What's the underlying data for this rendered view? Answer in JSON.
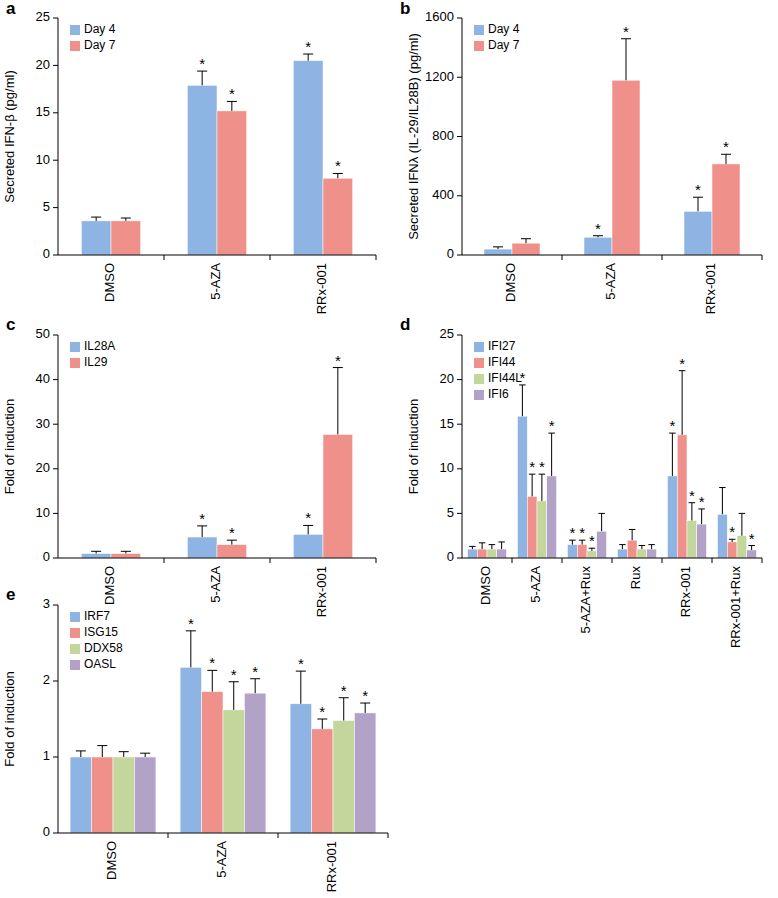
{
  "chart_data": [
    {
      "type": "bar",
      "panel": "a",
      "y_label": "Secreted IFN-β (pg/ml)",
      "categories": [
        "DMSO",
        "5-AZA",
        "RRx-001"
      ],
      "ylim": [
        0,
        25
      ],
      "yticks": [
        0,
        5,
        10,
        15,
        20,
        25
      ],
      "legend": "top-left",
      "series": [
        {
          "name": "Day 4",
          "color": "#8eb4e3",
          "values": [
            3.6,
            17.9,
            20.5
          ],
          "errors": [
            0.4,
            1.5,
            0.7
          ],
          "sig_labels": [
            null,
            "*",
            "*"
          ]
        },
        {
          "name": "Day 7",
          "color": "#f0908b",
          "values": [
            3.6,
            15.2,
            8.1
          ],
          "errors": [
            0.3,
            1.0,
            0.5
          ],
          "sig_labels": [
            null,
            "*",
            "*"
          ]
        }
      ]
    },
    {
      "type": "bar",
      "panel": "b",
      "y_label": "Secreted IFNλ (IL-29/IL28B) (pg/ml)",
      "categories": [
        "DMSO",
        "5-AZA",
        "RRx-001"
      ],
      "ylim": [
        0,
        1600
      ],
      "yticks": [
        0,
        400,
        800,
        1200,
        1600
      ],
      "legend": "top-left",
      "series": [
        {
          "name": "Day 4",
          "color": "#8eb4e3",
          "values": [
            40,
            120,
            295
          ],
          "errors": [
            15,
            10,
            95
          ],
          "sig_labels": [
            null,
            "*",
            "*"
          ]
        },
        {
          "name": "Day 7",
          "color": "#f0908b",
          "values": [
            80,
            1180,
            615
          ],
          "errors": [
            30,
            280,
            65
          ],
          "sig_labels": [
            null,
            "*",
            "*"
          ]
        }
      ]
    },
    {
      "type": "bar",
      "panel": "c",
      "y_label": "Fold of induction",
      "categories": [
        "DMSO",
        "5-AZA",
        "RRx-001"
      ],
      "ylim": [
        0,
        50
      ],
      "yticks": [
        0,
        10,
        20,
        30,
        40,
        50
      ],
      "legend": "top-left",
      "series": [
        {
          "name": "IL28A",
          "color": "#8eb4e3",
          "values": [
            1,
            4.7,
            5.3
          ],
          "errors": [
            0.5,
            2.5,
            2
          ],
          "sig_labels": [
            null,
            "*",
            "*"
          ]
        },
        {
          "name": "IL29",
          "color": "#f0908b",
          "values": [
            1,
            3,
            27.7
          ],
          "errors": [
            0.5,
            1,
            15
          ],
          "sig_labels": [
            null,
            "*",
            "*"
          ]
        }
      ]
    },
    {
      "type": "bar",
      "panel": "d",
      "y_label": "Fold of induction",
      "categories": [
        "DMSO",
        "5-AZA",
        "5-AZA+Rux",
        "Rux",
        "RRx-001",
        "RRx-001+Rux"
      ],
      "ylim": [
        0,
        25
      ],
      "yticks": [
        0,
        5,
        10,
        15,
        20,
        25
      ],
      "legend": "top-left",
      "series": [
        {
          "name": "IFI27",
          "color": "#8eb4e3",
          "values": [
            1,
            15.9,
            1.5,
            1,
            9.2,
            4.9
          ],
          "errors": [
            0.3,
            3.5,
            0.5,
            0.5,
            4.8,
            3
          ],
          "sig_labels": [
            null,
            "*",
            "*",
            null,
            "*",
            null
          ]
        },
        {
          "name": "IFI44",
          "color": "#f0908b",
          "values": [
            1,
            6.9,
            1.5,
            2,
            13.8,
            1.8
          ],
          "errors": [
            0.7,
            2.5,
            0.5,
            1.2,
            7.2,
            0.3
          ],
          "sig_labels": [
            null,
            "*",
            "*",
            null,
            "*",
            "*"
          ]
        },
        {
          "name": "IFI44L",
          "color": "#c3d69b",
          "values": [
            1,
            6.4,
            0.8,
            1,
            4.2,
            2.5
          ],
          "errors": [
            0.5,
            3,
            0.3,
            0.4,
            2,
            2.5
          ],
          "sig_labels": [
            null,
            "*",
            "*",
            null,
            "*",
            null
          ]
        },
        {
          "name": "IFI6",
          "color": "#b3a2c7",
          "values": [
            1,
            9.2,
            3,
            1,
            3.8,
            0.9
          ],
          "errors": [
            0.8,
            4.8,
            2,
            0.5,
            1.7,
            0.5
          ],
          "sig_labels": [
            null,
            "*",
            null,
            null,
            "*",
            "*"
          ]
        }
      ]
    },
    {
      "type": "bar",
      "panel": "e",
      "y_label": "Fold of induction",
      "categories": [
        "DMSO",
        "5-AZA",
        "RRx-001"
      ],
      "ylim": [
        0,
        3
      ],
      "yticks": [
        0,
        1,
        2,
        3
      ],
      "legend": "top-left",
      "series": [
        {
          "name": "IRF7",
          "color": "#8eb4e3",
          "values": [
            1,
            2.18,
            1.7
          ],
          "errors": [
            0.08,
            0.48,
            0.43
          ],
          "sig_labels": [
            null,
            "*",
            "*"
          ]
        },
        {
          "name": "ISG15",
          "color": "#f0908b",
          "values": [
            1,
            1.86,
            1.37
          ],
          "errors": [
            0.15,
            0.28,
            0.13
          ],
          "sig_labels": [
            null,
            "*",
            "*"
          ]
        },
        {
          "name": "DDX58",
          "color": "#c3d69b",
          "values": [
            1,
            1.62,
            1.48
          ],
          "errors": [
            0.07,
            0.37,
            0.3
          ],
          "sig_labels": [
            null,
            "*",
            "*"
          ]
        },
        {
          "name": "OASL",
          "color": "#b3a2c7",
          "values": [
            1,
            1.84,
            1.58
          ],
          "errors": [
            0.05,
            0.19,
            0.13
          ],
          "sig_labels": [
            null,
            "*",
            "*"
          ]
        }
      ]
    }
  ]
}
